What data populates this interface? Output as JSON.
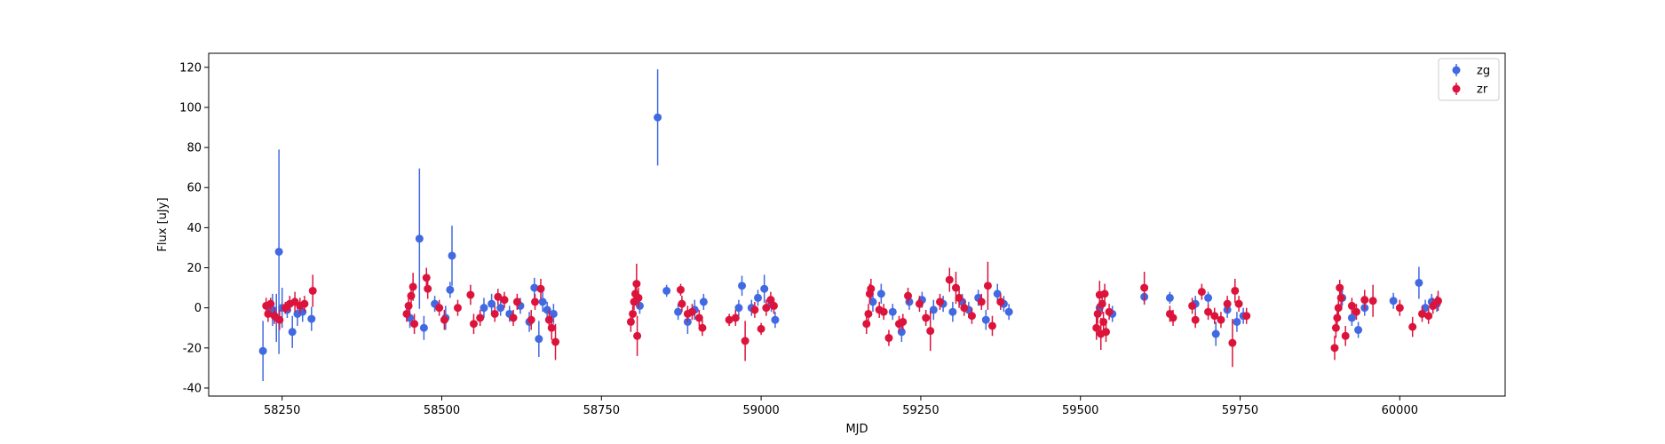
{
  "chart_data": {
    "type": "scatter",
    "title": "",
    "xlabel": "MJD",
    "ylabel": "Flux [uJy]",
    "xlim": [
      58135,
      60165
    ],
    "ylim": [
      -44,
      127
    ],
    "xticks": [
      58250,
      58500,
      58750,
      59000,
      59250,
      59500,
      59750,
      60000
    ],
    "yticks": [
      -40,
      -20,
      0,
      20,
      40,
      60,
      80,
      100,
      120
    ],
    "grid": false,
    "legend_position": "top-right",
    "series": [
      {
        "name": "zg",
        "color": "#4169e1",
        "points": [
          [
            58220,
            -21.5,
            15
          ],
          [
            58235,
            -1,
            8
          ],
          [
            58241,
            -5,
            12
          ],
          [
            58245,
            28,
            51
          ],
          [
            58250,
            0,
            10
          ],
          [
            58258,
            -1,
            4
          ],
          [
            58266,
            -12,
            8
          ],
          [
            58274,
            -3,
            6
          ],
          [
            58282,
            -2,
            5
          ],
          [
            58296,
            -5.5,
            6
          ],
          [
            58450,
            -5,
            5
          ],
          [
            58465,
            34.5,
            35
          ],
          [
            58472,
            -10,
            6
          ],
          [
            58489,
            2,
            4
          ],
          [
            58506,
            -5,
            6
          ],
          [
            58516,
            26,
            15
          ],
          [
            58513,
            9,
            4
          ],
          [
            58566,
            0,
            5
          ],
          [
            58578,
            2,
            5
          ],
          [
            58592,
            0,
            4
          ],
          [
            58606,
            -3,
            4
          ],
          [
            58623,
            1,
            4
          ],
          [
            58637,
            -7,
            5
          ],
          [
            58645,
            10,
            5
          ],
          [
            58652,
            -15.5,
            9
          ],
          [
            58658,
            3,
            5
          ],
          [
            58665,
            -1,
            4
          ],
          [
            58675,
            -3,
            5
          ],
          [
            58810,
            1,
            4
          ],
          [
            58838,
            95,
            24
          ],
          [
            58852,
            8.5,
            3
          ],
          [
            58870,
            -2,
            4
          ],
          [
            58885,
            -7,
            6
          ],
          [
            58896,
            -1,
            5
          ],
          [
            58910,
            3,
            4
          ],
          [
            58965,
            0,
            4
          ],
          [
            58970,
            11,
            5
          ],
          [
            58985,
            0,
            4
          ],
          [
            58995,
            5,
            4
          ],
          [
            59005,
            9.5,
            7
          ],
          [
            59016,
            2,
            4
          ],
          [
            59022,
            -6,
            4
          ],
          [
            59175,
            3,
            5
          ],
          [
            59188,
            7,
            5
          ],
          [
            59206,
            -2,
            4
          ],
          [
            59220,
            -12,
            5
          ],
          [
            59232,
            3,
            4
          ],
          [
            59252,
            4,
            4
          ],
          [
            59270,
            -1,
            5
          ],
          [
            59285,
            2,
            4
          ],
          [
            59300,
            -2,
            5
          ],
          [
            59315,
            3,
            4
          ],
          [
            59325,
            -1,
            4
          ],
          [
            59340,
            5,
            4
          ],
          [
            59352,
            -6,
            5
          ],
          [
            59370,
            7,
            5
          ],
          [
            59380,
            2,
            4
          ],
          [
            59388,
            -2,
            4
          ],
          [
            59530,
            0,
            4
          ],
          [
            59550,
            -3,
            4
          ],
          [
            59600,
            5.5,
            4
          ],
          [
            59640,
            5,
            3
          ],
          [
            59680,
            2,
            4
          ],
          [
            59700,
            5,
            3
          ],
          [
            59712,
            -13,
            6
          ],
          [
            59730,
            -1,
            4
          ],
          [
            59745,
            -7,
            5
          ],
          [
            59755,
            -4,
            4
          ],
          [
            59910,
            5,
            4
          ],
          [
            59925,
            -5,
            4
          ],
          [
            59935,
            -11,
            4
          ],
          [
            59945,
            0,
            4
          ],
          [
            59990,
            3.5,
            4
          ],
          [
            60030,
            12.5,
            8
          ],
          [
            60040,
            0,
            4
          ],
          [
            60050,
            3,
            4
          ],
          [
            60058,
            2,
            4
          ]
        ]
      },
      {
        "name": "zr",
        "color": "#dc143c",
        "points": [
          [
            58225,
            1,
            4
          ],
          [
            58228,
            -3,
            4
          ],
          [
            58232,
            2,
            3
          ],
          [
            58238,
            -4,
            4
          ],
          [
            58246,
            -6,
            5
          ],
          [
            58255,
            0,
            3
          ],
          [
            58262,
            2,
            4
          ],
          [
            58270,
            3,
            5
          ],
          [
            58278,
            1,
            4
          ],
          [
            58285,
            2,
            4
          ],
          [
            58298,
            8.5,
            8
          ],
          [
            58445,
            -3,
            4
          ],
          [
            58448,
            1,
            4
          ],
          [
            58452,
            6,
            5
          ],
          [
            58455,
            10.5,
            7
          ],
          [
            58457,
            -8,
            5
          ],
          [
            58476,
            15,
            5
          ],
          [
            58478,
            9.5,
            5
          ],
          [
            58496,
            0,
            4
          ],
          [
            58504,
            -6,
            5
          ],
          [
            58525,
            0,
            4
          ],
          [
            58545,
            6.5,
            5
          ],
          [
            58550,
            -8,
            5
          ],
          [
            58560,
            -5,
            4
          ],
          [
            58583,
            -3,
            4
          ],
          [
            58588,
            5.5,
            4
          ],
          [
            58598,
            4,
            4
          ],
          [
            58612,
            -5,
            4
          ],
          [
            58618,
            3,
            4
          ],
          [
            58640,
            -6,
            5
          ],
          [
            58646,
            3,
            4
          ],
          [
            58655,
            9.5,
            5
          ],
          [
            58668,
            -6,
            5
          ],
          [
            58672,
            -10,
            6
          ],
          [
            58678,
            -17,
            9
          ],
          [
            58796,
            -7,
            5
          ],
          [
            58799,
            -3,
            4
          ],
          [
            58801,
            3,
            4
          ],
          [
            58803,
            7,
            5
          ],
          [
            58805,
            12,
            10
          ],
          [
            58806,
            -14,
            10
          ],
          [
            58808,
            5,
            5
          ],
          [
            58874,
            9,
            3
          ],
          [
            58876,
            2,
            4
          ],
          [
            58885,
            -3,
            4
          ],
          [
            58892,
            -2,
            4
          ],
          [
            58903,
            -5,
            4
          ],
          [
            58908,
            -10,
            4
          ],
          [
            58950,
            -6,
            3
          ],
          [
            58960,
            -5,
            4
          ],
          [
            58975,
            -16.5,
            10
          ],
          [
            58990,
            -1,
            4
          ],
          [
            59000,
            -10.5,
            3
          ],
          [
            59008,
            0,
            4
          ],
          [
            59015,
            4,
            4
          ],
          [
            59020,
            1,
            4
          ],
          [
            59165,
            -8,
            5
          ],
          [
            59168,
            -3,
            5
          ],
          [
            59170,
            7,
            5
          ],
          [
            59172,
            9.5,
            5
          ],
          [
            59185,
            -1,
            4
          ],
          [
            59192,
            -2,
            4
          ],
          [
            59200,
            -15,
            4
          ],
          [
            59216,
            -8,
            4
          ],
          [
            59222,
            -7,
            4
          ],
          [
            59230,
            6,
            4
          ],
          [
            59248,
            2,
            4
          ],
          [
            59258,
            -5,
            4
          ],
          [
            59265,
            -11.5,
            10
          ],
          [
            59280,
            3,
            4
          ],
          [
            59295,
            14,
            6
          ],
          [
            59305,
            10,
            8
          ],
          [
            59310,
            5,
            5
          ],
          [
            59318,
            0,
            4
          ],
          [
            59330,
            -4,
            4
          ],
          [
            59345,
            3,
            4
          ],
          [
            59355,
            11,
            12
          ],
          [
            59362,
            -9,
            5
          ],
          [
            59375,
            3,
            4
          ],
          [
            59525,
            -10,
            6
          ],
          [
            59527,
            -3,
            5
          ],
          [
            59530,
            6.5,
            7
          ],
          [
            59532,
            -13,
            8
          ],
          [
            59534,
            2,
            5
          ],
          [
            59536,
            -7,
            5
          ],
          [
            59538,
            7,
            5
          ],
          [
            59540,
            -12,
            5
          ],
          [
            59545,
            -2,
            4
          ],
          [
            59600,
            10,
            8
          ],
          [
            59640,
            -3,
            4
          ],
          [
            59645,
            -5,
            4
          ],
          [
            59675,
            1,
            4
          ],
          [
            59680,
            -6,
            4
          ],
          [
            59690,
            8,
            4
          ],
          [
            59700,
            -2,
            4
          ],
          [
            59710,
            -4,
            4
          ],
          [
            59720,
            -6,
            4
          ],
          [
            59730,
            2,
            4
          ],
          [
            59738,
            -17.5,
            12
          ],
          [
            59742,
            8.5,
            6
          ],
          [
            59748,
            2,
            4
          ],
          [
            59760,
            -4,
            4
          ],
          [
            59898,
            -20,
            6
          ],
          [
            59900,
            -10,
            5
          ],
          [
            59902,
            -5,
            5
          ],
          [
            59904,
            0,
            4
          ],
          [
            59906,
            10,
            4
          ],
          [
            59908,
            5,
            4
          ],
          [
            59915,
            -14,
            5
          ],
          [
            59925,
            1,
            4
          ],
          [
            59932,
            -2,
            4
          ],
          [
            59945,
            4,
            5
          ],
          [
            59958,
            3.5,
            8
          ],
          [
            60000,
            0,
            4
          ],
          [
            60020,
            -9.5,
            5
          ],
          [
            60035,
            -3,
            4
          ],
          [
            60045,
            -4,
            4
          ],
          [
            60052,
            1,
            4
          ],
          [
            60060,
            3.5,
            5
          ]
        ]
      }
    ]
  }
}
